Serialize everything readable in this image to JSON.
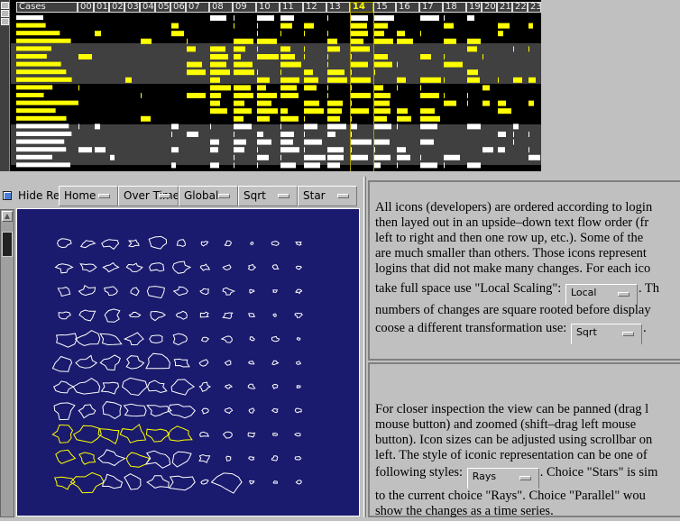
{
  "timeline": {
    "cases_label": "Cases",
    "hours": [
      "00",
      "01",
      "02",
      "03",
      "04",
      "05",
      "06",
      "07",
      "08",
      "09",
      "10",
      "11",
      "12",
      "13",
      "14",
      "15",
      "16",
      "17",
      "18",
      "19",
      "20",
      "21",
      "22",
      "23"
    ],
    "selected_hour": "14",
    "colors": {
      "yellow": "#ffff00",
      "white": "#ffffff",
      "band_dark": "#000000",
      "band_gray": "#404040"
    }
  },
  "controls": {
    "hide_label": "Hide Re",
    "hide_checked": true,
    "dropdowns": [
      "Home",
      "Over Time",
      "Global",
      "Sqrt",
      "Star"
    ]
  },
  "icon_view": {
    "background": "#1a1a6e",
    "rows": 11,
    "cols": 11,
    "highlight_color": "#ffff00",
    "icon_color": "#ffffff"
  },
  "help1": {
    "lines": [
      "All icons (developers) are ordered according to login",
      "then layed out in an upside–down text flow order (fr",
      "left to right and then one row up, etc.). Some of the",
      "are much smaller than others. Those icons represent",
      "logins that did not make many changes. For each ico"
    ],
    "l6a": "take full space use \"Local Scaling\": ",
    "scaling_value": "Local",
    "l6b": ". Th",
    "l7": "numbers of changes are square rooted before display",
    "l8a": "coose a different transformation use: ",
    "transform_value": "Sqrt",
    "l8b": "."
  },
  "help2": {
    "lines": [
      "For closer inspection the view can be panned (drag l",
      "mouse button) and zoomed (shift–drag left mouse",
      "button). Icon sizes can be adjusted using scrollbar on",
      "left. The style of iconic representation can be one of"
    ],
    "l5a": "following styles: ",
    "style_value": "Rays",
    "l5b": ". Choice \"Stars\" is sim",
    "l6": "to the current choice \"Rays\". Choice \"Parallel\" wou",
    "l7": "show the changes as a time series."
  }
}
